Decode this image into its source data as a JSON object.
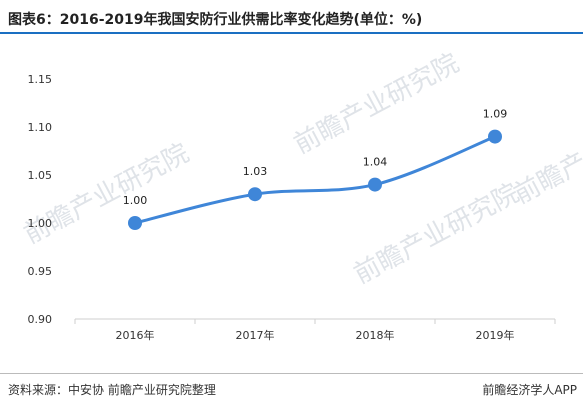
{
  "title": "图表6：2016-2019年我国安防行业供需比率变化趋势(单位：%)",
  "source": "资料来源：中安协 前瞻产业研究院整理",
  "app_mark": "前瞻经济学人APP",
  "watermark": "前瞻产业研究院",
  "colors": {
    "line": "#3f86d8",
    "title_rule": "#1a6fc2",
    "axis": "#cfcfcf"
  },
  "chart_data": {
    "type": "line",
    "categories": [
      "2016年",
      "2017年",
      "2018年",
      "2019年"
    ],
    "values": [
      1.0,
      1.03,
      1.04,
      1.09
    ],
    "data_labels": [
      "1.00",
      "1.03",
      "1.04",
      "1.09"
    ],
    "ylim": [
      0.9,
      1.15
    ],
    "yticks": [
      "0.90",
      "0.95",
      "1.00",
      "1.05",
      "1.10",
      "1.15"
    ],
    "grid": false
  }
}
